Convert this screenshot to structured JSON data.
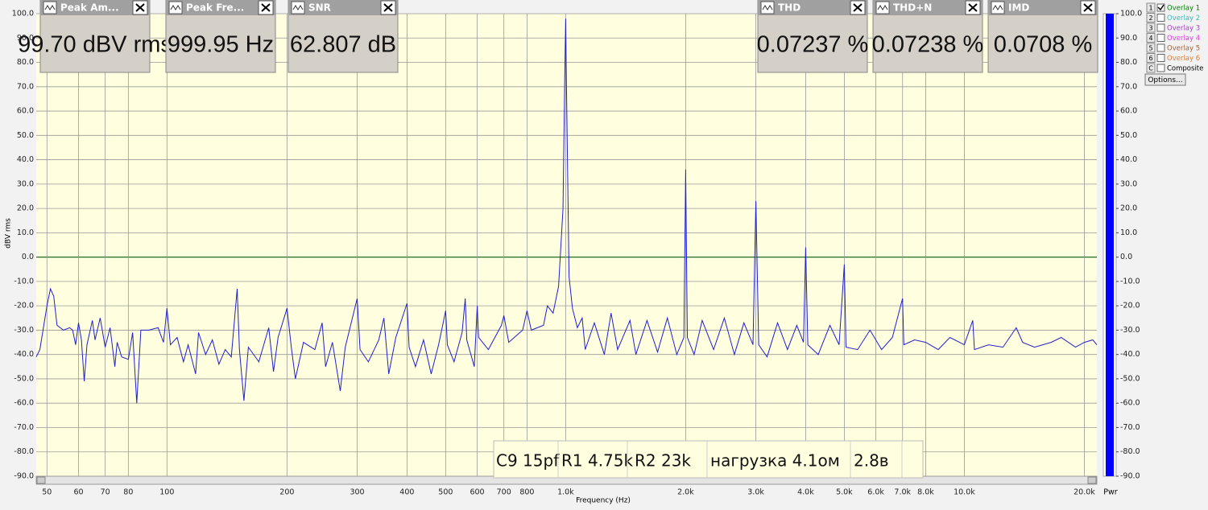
{
  "chart_data": {
    "type": "line",
    "xscale": "log",
    "grid": true,
    "color": "#2020d0",
    "background": "#ffffe0",
    "x_label": "Frequency (Hz)",
    "y_label": "dBV rms",
    "xlim": [
      47,
      21500
    ],
    "ylim": [
      -90,
      100
    ],
    "xticks": [
      50,
      60,
      70,
      80,
      100,
      200,
      300,
      400,
      500,
      600,
      700,
      800,
      {
        "value": 1000,
        "label": "1.0k"
      },
      {
        "value": 2000,
        "label": "2.0k"
      },
      {
        "value": 3000,
        "label": "3.0k"
      },
      {
        "value": 4000,
        "label": "4.0k"
      },
      {
        "value": 5000,
        "label": "5.0k"
      },
      {
        "value": 6000,
        "label": "6.0k"
      },
      {
        "value": 7000,
        "label": "7.0k"
      },
      {
        "value": 8000,
        "label": "8.0k"
      },
      {
        "value": 10000,
        "label": "10.0k"
      },
      {
        "value": 20000,
        "label": "20.0k"
      }
    ],
    "yticks": [
      {
        "value": 100,
        "label": "100.0"
      },
      {
        "value": 90,
        "label": "90.0"
      },
      {
        "value": 80,
        "label": "80.0"
      },
      {
        "value": 70,
        "label": "70.0"
      },
      {
        "value": 60,
        "label": "60.0"
      },
      {
        "value": 50,
        "label": "50.0"
      },
      {
        "value": 40,
        "label": "40.0"
      },
      {
        "value": 30,
        "label": "30.0"
      },
      {
        "value": 20,
        "label": "20.0"
      },
      {
        "value": 10,
        "label": "10.0"
      },
      {
        "value": 0,
        "label": "0.0"
      },
      {
        "value": -10,
        "label": "-10.0"
      },
      {
        "value": -20,
        "label": "-20.0"
      },
      {
        "value": -30,
        "label": "-30.0"
      },
      {
        "value": -40,
        "label": "-40.0"
      },
      {
        "value": -50,
        "label": "-50.0"
      },
      {
        "value": -60,
        "label": "-60.0"
      },
      {
        "value": -70,
        "label": "-70.0"
      },
      {
        "value": -80,
        "label": "-80.0"
      },
      {
        "value": -90,
        "label": "-90.0"
      }
    ],
    "x": [
      47,
      48,
      50,
      51,
      52,
      53,
      55,
      57,
      58,
      59,
      60,
      61,
      62,
      63,
      65,
      66,
      68,
      70,
      72,
      74,
      75,
      77,
      80,
      82,
      84,
      86,
      90,
      95,
      98,
      100,
      102,
      106,
      110,
      113,
      118,
      120,
      125,
      130,
      135,
      140,
      145,
      150,
      152,
      156,
      160,
      170,
      180,
      185,
      190,
      200,
      205,
      210,
      220,
      235,
      245,
      250,
      260,
      272,
      280,
      300,
      305,
      320,
      340,
      350,
      360,
      375,
      400,
      405,
      420,
      440,
      460,
      480,
      500,
      505,
      525,
      550,
      560,
      565,
      590,
      600,
      605,
      640,
      690,
      700,
      720,
      780,
      800,
      820,
      880,
      900,
      930,
      960,
      985,
      995,
      1000,
      1005,
      1020,
      1040,
      1070,
      1100,
      1120,
      1180,
      1250,
      1300,
      1350,
      1450,
      1500,
      1600,
      1700,
      1800,
      1900,
      1980,
      2000,
      2020,
      2100,
      2200,
      2350,
      2500,
      2650,
      2800,
      2950,
      3000,
      3050,
      3200,
      3400,
      3600,
      3800,
      3950,
      4000,
      4050,
      4300,
      4600,
      4850,
      5000,
      5050,
      5400,
      5800,
      6200,
      6600,
      7000,
      7050,
      7500,
      8000,
      8600,
      9200,
      10000,
      10500,
      10600,
      11500,
      12500,
      13500,
      14000,
      15000,
      16500,
      17500,
      19000,
      20000,
      21000,
      21500
    ],
    "values": [
      -41,
      -38,
      -20,
      -13,
      -16,
      -28,
      -30,
      -29,
      -30,
      -36,
      -27,
      -34,
      -51,
      -36,
      -26,
      -34,
      -25,
      -37,
      -29,
      -45,
      -35,
      -41,
      -42,
      -31,
      -60,
      -30,
      -30,
      -29,
      -35,
      -21,
      -36,
      -33,
      -43,
      -36,
      -48,
      -31,
      -40,
      -34,
      -44,
      -38,
      -41,
      -13,
      -38,
      -59,
      -37,
      -43,
      -29,
      -47,
      -33,
      -21,
      -37,
      -50,
      -35,
      -38,
      -27,
      -45,
      -35,
      -55,
      -37,
      -17,
      -38,
      -43,
      -34,
      -25,
      -48,
      -33,
      -19,
      -37,
      -45,
      -34,
      -48,
      -36,
      -22,
      -36,
      -43,
      -31,
      -17,
      -34,
      -45,
      -20,
      -33,
      -38,
      -28,
      -24,
      -35,
      -30,
      -22,
      -30,
      -28,
      -20,
      -23,
      -12,
      20,
      75,
      98,
      70,
      -8,
      -21,
      -29,
      -25,
      -38,
      -27,
      -40,
      -23,
      -38,
      -26,
      -40,
      -26,
      -39,
      -25,
      -40,
      -33,
      36,
      -33,
      -40,
      -26,
      -38,
      -25,
      -40,
      -27,
      -36,
      23,
      -36,
      -41,
      -27,
      -38,
      -28,
      -35,
      4,
      -36,
      -40,
      -28,
      -36,
      -3,
      -37,
      -38,
      -30,
      -38,
      -33,
      -17,
      -36,
      -34,
      -35,
      -38,
      -33,
      -36,
      -26,
      -38,
      -36,
      -37,
      -29,
      -35,
      -37,
      -35,
      -33,
      -37,
      -35,
      -34,
      -36
    ],
    "meter": {
      "label": "Pwr",
      "value": 100,
      "color": "#0000ff"
    },
    "annotations": [
      "C9 15pf",
      "R1 4.75k",
      "R2 23k",
      "нагрузка 4.1ом",
      "2.8в"
    ]
  },
  "readouts": [
    {
      "title": "Peak Am...",
      "value": "99.70 dBV rms"
    },
    {
      "title": "Peak Fre...",
      "value": "999.95 Hz"
    },
    {
      "title": "SNR",
      "value": "62.807 dB"
    },
    {
      "title": "THD",
      "value": "0.07237 %"
    },
    {
      "title": "THD+N",
      "value": "0.07238 %"
    },
    {
      "title": "IMD",
      "value": "0.0708 %"
    }
  ],
  "overlays": [
    {
      "key": "1",
      "name": "Overlay 1",
      "color": "#008000"
    },
    {
      "key": "2",
      "name": "Overlay 2",
      "color": "#40b8b8"
    },
    {
      "key": "3",
      "name": "Overlay 3",
      "color": "#a040c0"
    },
    {
      "key": "4",
      "name": "Overlay 4",
      "color": "#e040e0"
    },
    {
      "key": "5",
      "name": "Overlay 5",
      "color": "#a06040"
    },
    {
      "key": "6",
      "name": "Overlay 6",
      "color": "#e08040"
    },
    {
      "key": "C",
      "name": "Composite",
      "color": "#000000"
    }
  ],
  "options_button": "Options..."
}
